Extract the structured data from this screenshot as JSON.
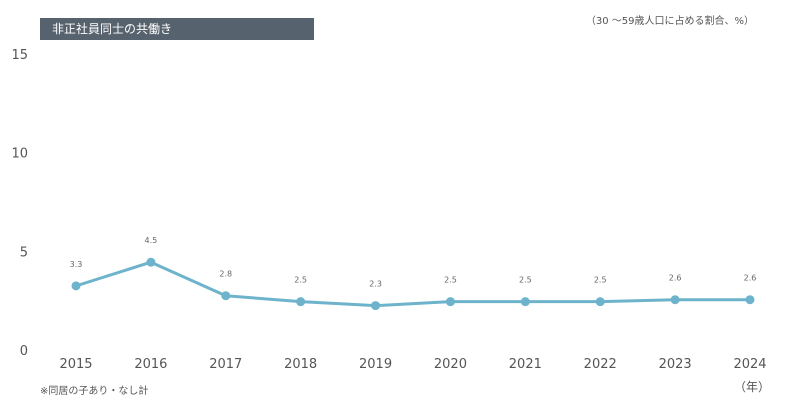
{
  "chart_data": {
    "type": "line",
    "title": "非正社員同士の共働き",
    "unit_note": "（30 〜59歳人口に占める割合、%）",
    "footnote": "※同居の子あり・なし計",
    "x_unit": "（年）",
    "categories": [
      "2015",
      "2016",
      "2017",
      "2018",
      "2019",
      "2020",
      "2021",
      "2022",
      "2023",
      "2024"
    ],
    "values": [
      3.3,
      4.5,
      2.8,
      2.5,
      2.3,
      2.5,
      2.5,
      2.5,
      2.6,
      2.6
    ],
    "value_labels": [
      "3.3",
      "4.5",
      "2.8",
      "2.5",
      "2.3",
      "2.5",
      "2.5",
      "2.5",
      "2.6",
      "2.6"
    ],
    "y_ticks": [
      "0",
      "5",
      "10",
      "15"
    ],
    "ylim": [
      0,
      15
    ],
    "line_color": "#6db3cb",
    "grid": false
  }
}
